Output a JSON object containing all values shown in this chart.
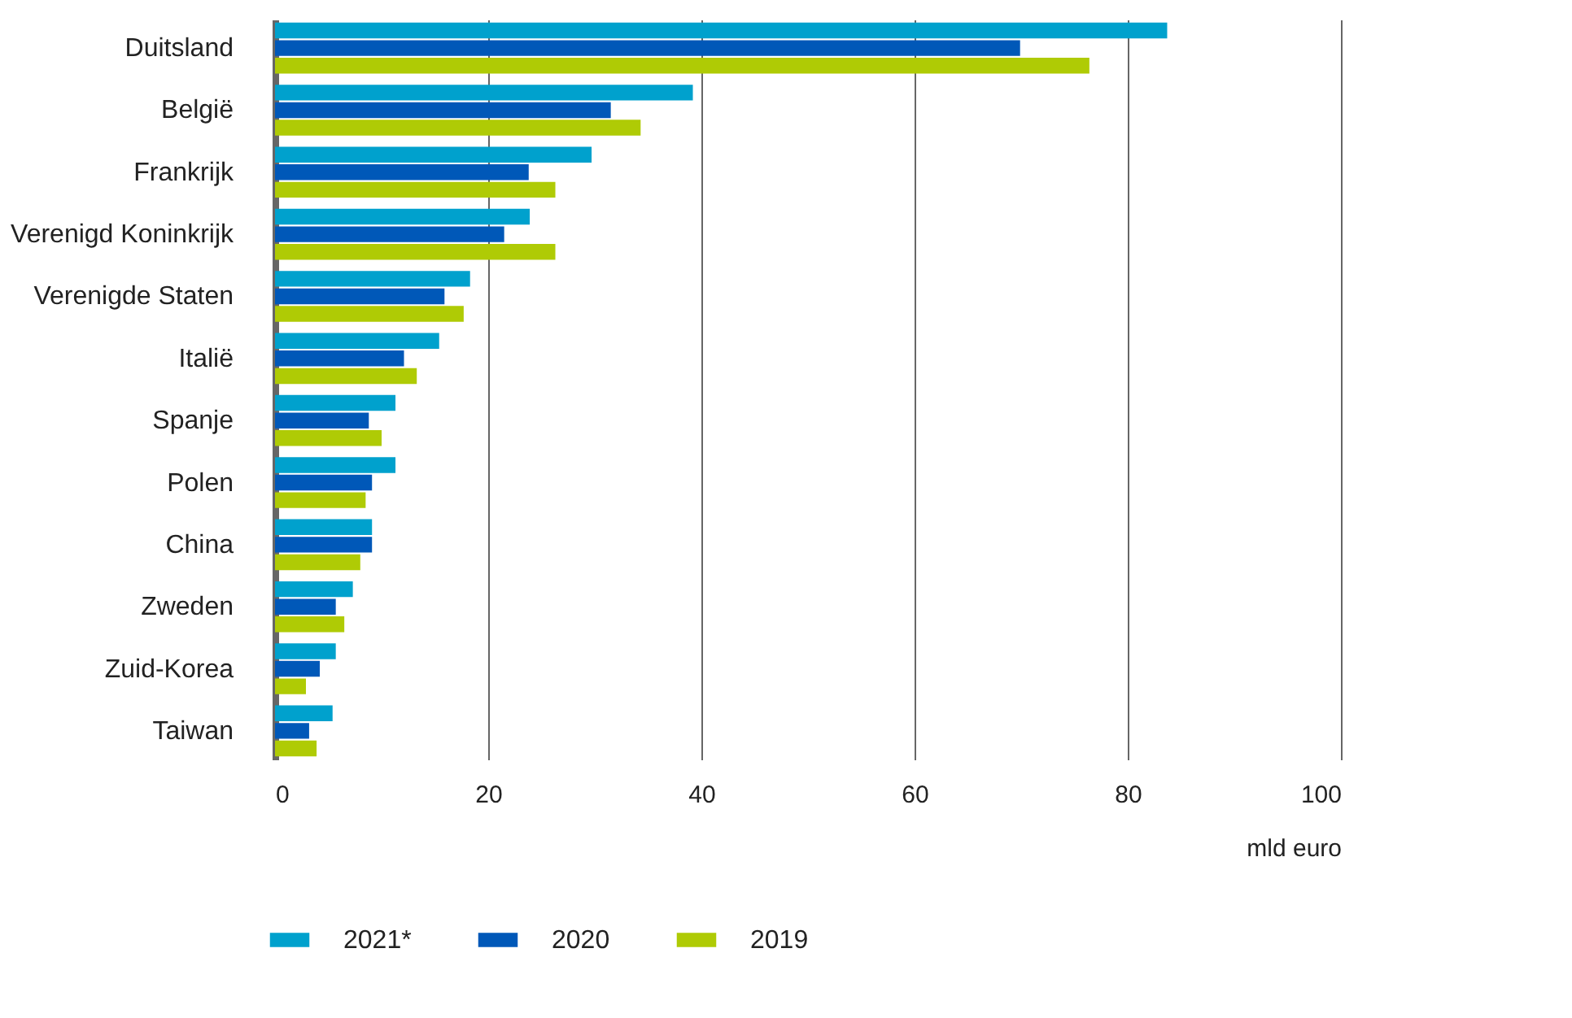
{
  "chart_data": {
    "type": "bar",
    "orientation": "horizontal",
    "xlabel": "mld euro",
    "categories": [
      "Duitsland",
      "België",
      "Frankrijk",
      "Verenigd Koninkrijk",
      "Verenigde Staten",
      "Italië",
      "Spanje",
      "Polen",
      "China",
      "Zweden",
      "Zuid-Korea",
      "Taiwan"
    ],
    "series": [
      {
        "name": "2021*",
        "color": "#00a1cd",
        "values": [
          83.7,
          39.2,
          29.7,
          23.9,
          18.3,
          15.4,
          11.3,
          11.3,
          9.1,
          7.3,
          5.7,
          5.4
        ]
      },
      {
        "name": "2020",
        "color": "#0058b8",
        "values": [
          69.9,
          31.5,
          23.8,
          21.5,
          15.9,
          12.1,
          8.8,
          9.1,
          9.1,
          5.7,
          4.2,
          3.2
        ]
      },
      {
        "name": "2019",
        "color": "#afcb05",
        "values": [
          76.4,
          34.3,
          26.3,
          26.3,
          17.7,
          13.3,
          10.0,
          8.5,
          8.0,
          6.5,
          2.9,
          3.9
        ]
      }
    ],
    "xlim": [
      0,
      100
    ],
    "xticks": [
      0,
      20,
      40,
      60,
      80,
      100
    ],
    "grid": "x",
    "legend": "bottom left"
  }
}
